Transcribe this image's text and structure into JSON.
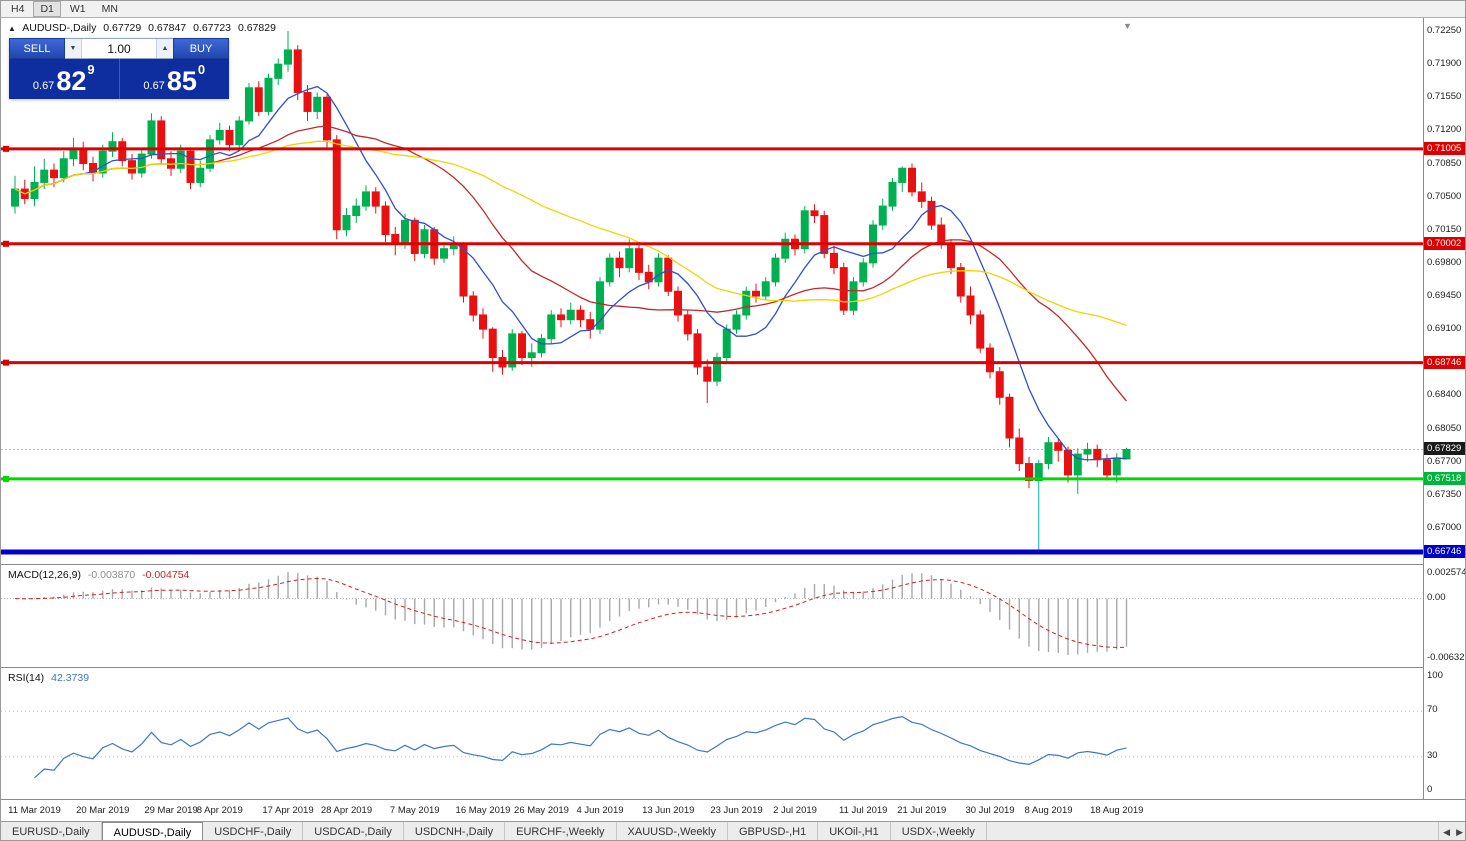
{
  "toolbar": {
    "timeframes": [
      "H4",
      "D1",
      "W1",
      "MN"
    ],
    "active_timeframe": "D1"
  },
  "header": {
    "toggle_icon": "▲",
    "title": "AUDUSD-,Daily",
    "open": "0.67729",
    "high": "0.67847",
    "low": "0.67723",
    "close": "0.67829"
  },
  "trade_panel": {
    "sell_label": "SELL",
    "buy_label": "BUY",
    "volume": "1.00",
    "volume_down_icon": "▼",
    "volume_up_icon": "▲",
    "sell_price_small": "0.67",
    "sell_price_big": "82",
    "sell_price_sup": "9",
    "buy_price_small": "0.67",
    "buy_price_big": "85",
    "buy_price_sup": "0"
  },
  "price_axis": {
    "labels": [
      "0.72250",
      "0.71900",
      "0.71550",
      "0.71200",
      "0.70850",
      "0.70500",
      "0.70150",
      "0.69800",
      "0.69450",
      "0.69100",
      "0.68750",
      "0.68400",
      "0.68050",
      "0.67700",
      "0.67350",
      "0.67000"
    ],
    "badges": [
      {
        "text": "0.71005",
        "price": 0.71005,
        "bg": "#dd0000"
      },
      {
        "text": "0.70002",
        "price": 0.70002,
        "bg": "#dd0000"
      },
      {
        "text": "0.68746",
        "price": 0.68746,
        "bg": "#dd0000"
      },
      {
        "text": "0.67829",
        "price": 0.67829,
        "bg": "#1a1a1a"
      },
      {
        "text": "0.67518",
        "price": 0.67518,
        "bg": "#00b43c"
      },
      {
        "text": "0.66746",
        "price": 0.66746,
        "bg": "#0000cc"
      }
    ]
  },
  "macd_panel": {
    "label": "MACD(12,26,9)",
    "value_main": "-0.003870",
    "value_signal": "-0.004754",
    "axis": [
      "0.002574",
      "0.00",
      "-0.006326"
    ]
  },
  "rsi_panel": {
    "label": "RSI(14)",
    "value": "42.3739",
    "axis": [
      "100",
      "70",
      "30",
      "0"
    ],
    "levels": [
      70,
      30
    ]
  },
  "tabs": {
    "items": [
      {
        "label": "EURUSD-,Daily",
        "active": false
      },
      {
        "label": "AUDUSD-,Daily",
        "active": true
      },
      {
        "label": "USDCHF-,Daily",
        "active": false
      },
      {
        "label": "USDCAD-,Daily",
        "active": false
      },
      {
        "label": "USDCNH-,Daily",
        "active": false
      },
      {
        "label": "EURCHF-,Weekly",
        "active": false
      },
      {
        "label": "XAUUSD-,Weekly",
        "active": false
      },
      {
        "label": "GBPUSD-,H1",
        "active": false
      },
      {
        "label": "UKOil-,H1",
        "active": false
      },
      {
        "label": "USDX-,Weekly",
        "active": false
      }
    ],
    "scroll_left": "◀",
    "scroll_right": "▶"
  },
  "chart_data": {
    "type": "candlestick",
    "symbol": "AUDUSD-",
    "timeframe": "Daily",
    "visible_price_range": [
      0.666,
      0.7241
    ],
    "shift_marker_icon": "▼",
    "colors": {
      "bull": "#00b050",
      "bear": "#e81010",
      "ma_fast": "#3050c8",
      "ma_mid": "#c22828",
      "ma_slow": "#efd500",
      "spike_wick": "#00b0b0",
      "macd_hist": "#a8a8a8",
      "macd_signal": "#cc2222",
      "rsi_line": "#3b78c3",
      "current_price_line": "#b4b4b4"
    },
    "moving_averages": [
      {
        "period": 8,
        "color_key": "ma_fast"
      },
      {
        "period": 21,
        "color_key": "ma_mid"
      },
      {
        "period": 40,
        "color_key": "ma_slow"
      }
    ],
    "hlines": [
      {
        "price": 0.71005,
        "color": "#dd0000",
        "width": 3,
        "handle": true,
        "role": "resistance"
      },
      {
        "price": 0.70002,
        "color": "#dd0000",
        "width": 3,
        "handle": true,
        "role": "resistance"
      },
      {
        "price": 0.68746,
        "color": "#dd0000",
        "width": 3,
        "handle": true,
        "role": "resistance"
      },
      {
        "price": 0.67518,
        "color": "#00d800",
        "width": 3,
        "handle": true,
        "role": "support"
      },
      {
        "price": 0.66746,
        "color": "#0000cc",
        "width": 5,
        "handle": false,
        "role": "support"
      }
    ],
    "current_price": 0.67829,
    "spike_wick_index": 105,
    "macd": {
      "fast": 12,
      "slow": 26,
      "signal": 9
    },
    "rsi_period": 14,
    "date_labels": [
      {
        "text": "11 Mar 2019",
        "bar": 2
      },
      {
        "text": "20 Mar 2019",
        "bar": 9
      },
      {
        "text": "29 Mar 2019",
        "bar": 16
      },
      {
        "text": "8 Apr 2019",
        "bar": 21
      },
      {
        "text": "17 Apr 2019",
        "bar": 28
      },
      {
        "text": "28 Apr 2019",
        "bar": 34
      },
      {
        "text": "7 May 2019",
        "bar": 41
      },
      {
        "text": "16 May 2019",
        "bar": 48
      },
      {
        "text": "26 May 2019",
        "bar": 54
      },
      {
        "text": "4 Jun 2019",
        "bar": 60
      },
      {
        "text": "13 Jun 2019",
        "bar": 67
      },
      {
        "text": "23 Jun 2019",
        "bar": 74
      },
      {
        "text": "2 Jul 2019",
        "bar": 80
      },
      {
        "text": "11 Jul 2019",
        "bar": 87
      },
      {
        "text": "21 Jul 2019",
        "bar": 93
      },
      {
        "text": "30 Jul 2019",
        "bar": 100
      },
      {
        "text": "8 Aug 2019",
        "bar": 106
      },
      {
        "text": "18 Aug 2019",
        "bar": 113
      }
    ],
    "candles": [
      [
        0.704,
        0.7072,
        0.7032,
        0.7058
      ],
      [
        0.7058,
        0.7068,
        0.7042,
        0.7048
      ],
      [
        0.7048,
        0.7082,
        0.704,
        0.7065
      ],
      [
        0.7065,
        0.709,
        0.7058,
        0.7078
      ],
      [
        0.7078,
        0.7085,
        0.706,
        0.707
      ],
      [
        0.707,
        0.7098,
        0.7065,
        0.709
      ],
      [
        0.709,
        0.7112,
        0.7082,
        0.71
      ],
      [
        0.71,
        0.7108,
        0.7078,
        0.7085
      ],
      [
        0.7085,
        0.7092,
        0.7066,
        0.7075
      ],
      [
        0.7075,
        0.7105,
        0.707,
        0.7098
      ],
      [
        0.7098,
        0.7118,
        0.7092,
        0.7108
      ],
      [
        0.7108,
        0.7112,
        0.7082,
        0.7088
      ],
      [
        0.7088,
        0.7095,
        0.7068,
        0.7075
      ],
      [
        0.7075,
        0.71,
        0.707,
        0.7095
      ],
      [
        0.7095,
        0.7138,
        0.709,
        0.713
      ],
      [
        0.713,
        0.7135,
        0.7085,
        0.709
      ],
      [
        0.709,
        0.7098,
        0.7072,
        0.708
      ],
      [
        0.708,
        0.7105,
        0.7075,
        0.7098
      ],
      [
        0.7098,
        0.7102,
        0.7058,
        0.7065
      ],
      [
        0.7065,
        0.7088,
        0.706,
        0.708
      ],
      [
        0.708,
        0.7115,
        0.7076,
        0.711
      ],
      [
        0.711,
        0.7128,
        0.7105,
        0.712
      ],
      [
        0.712,
        0.7125,
        0.7098,
        0.7105
      ],
      [
        0.7105,
        0.7135,
        0.71,
        0.713
      ],
      [
        0.713,
        0.717,
        0.7126,
        0.7165
      ],
      [
        0.7165,
        0.7172,
        0.7135,
        0.714
      ],
      [
        0.714,
        0.718,
        0.7136,
        0.7175
      ],
      [
        0.7175,
        0.7196,
        0.7168,
        0.719
      ],
      [
        0.719,
        0.7225,
        0.7182,
        0.7205
      ],
      [
        0.7205,
        0.721,
        0.7152,
        0.716
      ],
      [
        0.716,
        0.7168,
        0.713,
        0.714
      ],
      [
        0.714,
        0.716,
        0.7132,
        0.7155
      ],
      [
        0.7155,
        0.7158,
        0.71,
        0.711
      ],
      [
        0.711,
        0.7115,
        0.7005,
        0.7015
      ],
      [
        0.7015,
        0.7038,
        0.7008,
        0.703
      ],
      [
        0.703,
        0.7048,
        0.7022,
        0.704
      ],
      [
        0.704,
        0.7062,
        0.7035,
        0.7055
      ],
      [
        0.7055,
        0.706,
        0.7032,
        0.704
      ],
      [
        0.704,
        0.7045,
        0.7002,
        0.701
      ],
      [
        0.701,
        0.7018,
        0.6988,
        0.7
      ],
      [
        0.7,
        0.7032,
        0.6995,
        0.7025
      ],
      [
        0.7025,
        0.7028,
        0.6982,
        0.699
      ],
      [
        0.699,
        0.702,
        0.6985,
        0.7015
      ],
      [
        0.7015,
        0.7018,
        0.6978,
        0.6985
      ],
      [
        0.6985,
        0.7002,
        0.698,
        0.6995
      ],
      [
        0.6995,
        0.7008,
        0.6988,
        0.7
      ],
      [
        0.7,
        0.7002,
        0.6938,
        0.6945
      ],
      [
        0.6945,
        0.695,
        0.6918,
        0.6925
      ],
      [
        0.6925,
        0.6932,
        0.69,
        0.691
      ],
      [
        0.691,
        0.6912,
        0.6865,
        0.688
      ],
      [
        0.688,
        0.6888,
        0.6862,
        0.687
      ],
      [
        0.687,
        0.691,
        0.6866,
        0.6905
      ],
      [
        0.6905,
        0.6908,
        0.6872,
        0.688
      ],
      [
        0.688,
        0.6895,
        0.687,
        0.6885
      ],
      [
        0.6885,
        0.6905,
        0.688,
        0.69
      ],
      [
        0.69,
        0.693,
        0.6895,
        0.6925
      ],
      [
        0.6925,
        0.6932,
        0.6912,
        0.692
      ],
      [
        0.692,
        0.6938,
        0.6915,
        0.693
      ],
      [
        0.693,
        0.6935,
        0.6912,
        0.692
      ],
      [
        0.692,
        0.6928,
        0.69,
        0.691
      ],
      [
        0.691,
        0.6965,
        0.6905,
        0.696
      ],
      [
        0.696,
        0.699,
        0.6955,
        0.6985
      ],
      [
        0.6985,
        0.6992,
        0.6965,
        0.6975
      ],
      [
        0.6975,
        0.7005,
        0.697,
        0.6995
      ],
      [
        0.6995,
        0.7,
        0.6962,
        0.697
      ],
      [
        0.697,
        0.6978,
        0.6952,
        0.696
      ],
      [
        0.696,
        0.699,
        0.6955,
        0.6985
      ],
      [
        0.6985,
        0.6988,
        0.6945,
        0.695
      ],
      [
        0.695,
        0.6955,
        0.6918,
        0.6925
      ],
      [
        0.6925,
        0.693,
        0.6898,
        0.6905
      ],
      [
        0.6905,
        0.691,
        0.6862,
        0.687
      ],
      [
        0.687,
        0.6878,
        0.6832,
        0.6855
      ],
      [
        0.6855,
        0.6885,
        0.685,
        0.688
      ],
      [
        0.688,
        0.6915,
        0.6875,
        0.691
      ],
      [
        0.691,
        0.693,
        0.6905,
        0.6925
      ],
      [
        0.6925,
        0.6955,
        0.692,
        0.695
      ],
      [
        0.695,
        0.6958,
        0.6938,
        0.6945
      ],
      [
        0.6945,
        0.6965,
        0.694,
        0.696
      ],
      [
        0.696,
        0.699,
        0.6955,
        0.6985
      ],
      [
        0.6985,
        0.7012,
        0.698,
        0.7005
      ],
      [
        0.7005,
        0.701,
        0.6988,
        0.6995
      ],
      [
        0.6995,
        0.704,
        0.699,
        0.7035
      ],
      [
        0.7035,
        0.7042,
        0.7022,
        0.703
      ],
      [
        0.703,
        0.7035,
        0.6985,
        0.699
      ],
      [
        0.699,
        0.6998,
        0.6968,
        0.6975
      ],
      [
        0.6975,
        0.698,
        0.6925,
        0.693
      ],
      [
        0.693,
        0.6965,
        0.6925,
        0.696
      ],
      [
        0.696,
        0.6985,
        0.6955,
        0.698
      ],
      [
        0.698,
        0.7025,
        0.6975,
        0.702
      ],
      [
        0.702,
        0.7048,
        0.7015,
        0.704
      ],
      [
        0.704,
        0.707,
        0.7035,
        0.7065
      ],
      [
        0.7065,
        0.7082,
        0.7055,
        0.708
      ],
      [
        0.708,
        0.7085,
        0.705,
        0.7055
      ],
      [
        0.7055,
        0.7065,
        0.7038,
        0.7045
      ],
      [
        0.7045,
        0.705,
        0.7015,
        0.702
      ],
      [
        0.702,
        0.7028,
        0.6995,
        0.7
      ],
      [
        0.7,
        0.7005,
        0.6968,
        0.6975
      ],
      [
        0.6975,
        0.698,
        0.6938,
        0.6945
      ],
      [
        0.6945,
        0.6955,
        0.6915,
        0.6925
      ],
      [
        0.6925,
        0.693,
        0.6885,
        0.689
      ],
      [
        0.689,
        0.6895,
        0.6858,
        0.6865
      ],
      [
        0.6865,
        0.687,
        0.683,
        0.6838
      ],
      [
        0.6838,
        0.6842,
        0.6785,
        0.6795
      ],
      [
        0.6795,
        0.6805,
        0.676,
        0.6768
      ],
      [
        0.6768,
        0.6775,
        0.6742,
        0.675
      ],
      [
        0.675,
        0.6772,
        0.6675,
        0.6768
      ],
      [
        0.6768,
        0.6796,
        0.6762,
        0.679
      ],
      [
        0.679,
        0.6795,
        0.677,
        0.6782
      ],
      [
        0.6782,
        0.6786,
        0.6748,
        0.6756
      ],
      [
        0.6756,
        0.6784,
        0.6736,
        0.6778
      ],
      [
        0.6778,
        0.679,
        0.677,
        0.6783
      ],
      [
        0.6783,
        0.6788,
        0.6764,
        0.6772
      ],
      [
        0.6772,
        0.6778,
        0.675,
        0.6756
      ],
      [
        0.6756,
        0.6779,
        0.6748,
        0.6774
      ],
      [
        0.67729,
        0.67847,
        0.67723,
        0.67829
      ]
    ]
  }
}
